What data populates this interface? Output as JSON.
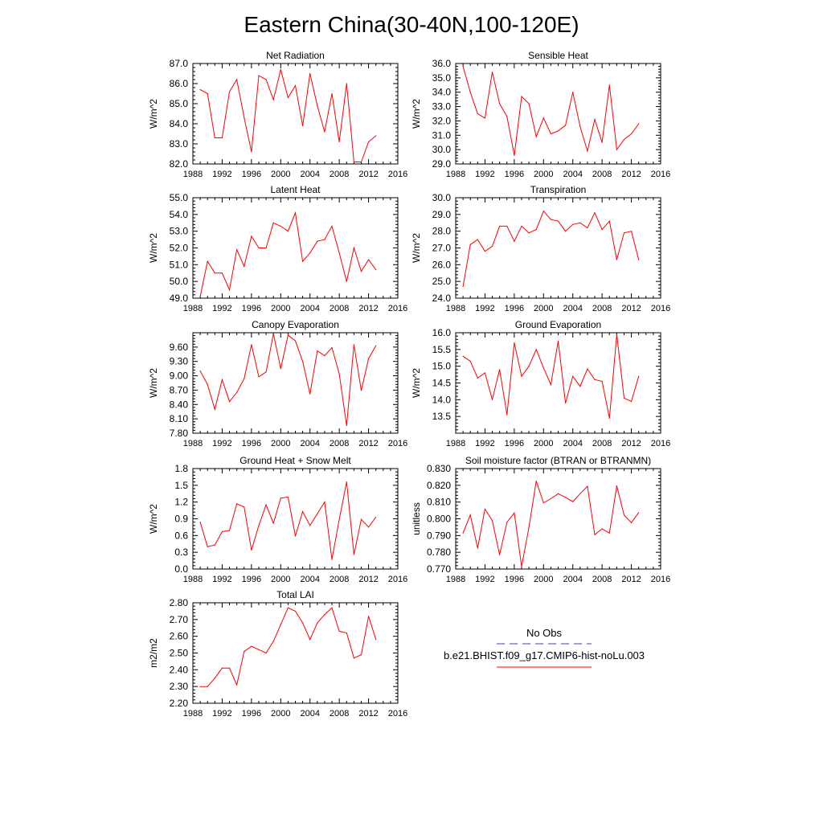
{
  "figure": {
    "title": "Eastern China(30-40N,100-120E)"
  },
  "colors": {
    "model": "#ff0000",
    "obs": "#3f3fa8",
    "axis": "#000000"
  },
  "legend": {
    "obs_label": "No Obs",
    "model_label": "b.e21.BHIST.f09_g17.CMIP6-hist-noLu.003"
  },
  "chart_data": [
    {
      "type": "line",
      "title": "Net Radiation",
      "ylabel": "W/m^2",
      "xlim": [
        1988,
        2016
      ],
      "ylim": [
        82.0,
        87.0
      ],
      "xticks": [
        "1988",
        "1992",
        "1996",
        "2000",
        "2004",
        "2008",
        "2012",
        "2016"
      ],
      "yticks": [
        "82.0",
        "83.0",
        "84.0",
        "85.0",
        "86.0",
        "87.0"
      ],
      "x": [
        1989,
        1990,
        1991,
        1992,
        1993,
        1994,
        1995,
        1996,
        1997,
        1998,
        1999,
        2000,
        2001,
        2002,
        2003,
        2004,
        2005,
        2006,
        2007,
        2008,
        2009,
        2010,
        2011,
        2012,
        2013
      ],
      "series": [
        {
          "name": "b.e21.BHIST.f09_g17.CMIP6-hist-noLu.003",
          "values": [
            85.7,
            85.5,
            83.3,
            83.3,
            85.6,
            86.2,
            84.3,
            82.6,
            86.4,
            86.2,
            85.2,
            86.7,
            85.3,
            85.9,
            83.9,
            86.5,
            84.9,
            83.6,
            85.5,
            83.1,
            86.0,
            82.1,
            82.1,
            83.1,
            83.4
          ]
        }
      ]
    },
    {
      "type": "line",
      "title": "Sensible Heat",
      "ylabel": "W/m^2",
      "xlim": [
        1988,
        2016
      ],
      "ylim": [
        29.0,
        36.0
      ],
      "xticks": [
        "1988",
        "1992",
        "1996",
        "2000",
        "2004",
        "2008",
        "2012",
        "2016"
      ],
      "yticks": [
        "29.0",
        "30.0",
        "31.0",
        "32.0",
        "33.0",
        "34.0",
        "35.0",
        "36.0"
      ],
      "x": [
        1989,
        1990,
        1991,
        1992,
        1993,
        1994,
        1995,
        1996,
        1997,
        1998,
        1999,
        2000,
        2001,
        2002,
        2003,
        2004,
        2005,
        2006,
        2007,
        2008,
        2009,
        2010,
        2011,
        2012,
        2013
      ],
      "series": [
        {
          "name": "b.e21.BHIST.f09_g17.CMIP6-hist-noLu.003",
          "values": [
            35.8,
            34.0,
            32.5,
            32.2,
            35.4,
            33.2,
            32.3,
            29.6,
            33.7,
            33.2,
            30.9,
            32.2,
            31.1,
            31.3,
            31.7,
            34.0,
            31.6,
            29.9,
            32.1,
            30.5,
            34.5,
            30.0,
            30.7,
            31.1,
            31.8
          ]
        }
      ]
    },
    {
      "type": "line",
      "title": "Latent Heat",
      "ylabel": "W/m^2",
      "xlim": [
        1988,
        2016
      ],
      "ylim": [
        49.0,
        55.0
      ],
      "xticks": [
        "1988",
        "1992",
        "1996",
        "2000",
        "2004",
        "2008",
        "2012",
        "2016"
      ],
      "yticks": [
        "49.0",
        "50.0",
        "51.0",
        "52.0",
        "53.0",
        "54.0",
        "55.0"
      ],
      "x": [
        1989,
        1990,
        1991,
        1992,
        1993,
        1994,
        1995,
        1996,
        1997,
        1998,
        1999,
        2000,
        2001,
        2002,
        2003,
        2004,
        2005,
        2006,
        2007,
        2008,
        2009,
        2010,
        2011,
        2012,
        2013
      ],
      "series": [
        {
          "name": "b.e21.BHIST.f09_g17.CMIP6-hist-noLu.003",
          "values": [
            49.1,
            51.2,
            50.5,
            50.5,
            49.5,
            51.9,
            50.9,
            52.7,
            52.0,
            52.0,
            53.5,
            53.3,
            53.0,
            54.1,
            51.2,
            51.7,
            52.4,
            52.5,
            53.3,
            51.7,
            50.0,
            52.0,
            50.6,
            51.3,
            50.7
          ]
        }
      ]
    },
    {
      "type": "line",
      "title": "Transpiration",
      "ylabel": "W/m^2",
      "xlim": [
        1988,
        2016
      ],
      "ylim": [
        24.0,
        30.0
      ],
      "xticks": [
        "1988",
        "1992",
        "1996",
        "2000",
        "2004",
        "2008",
        "2012",
        "2016"
      ],
      "yticks": [
        "24.0",
        "25.0",
        "26.0",
        "27.0",
        "28.0",
        "29.0",
        "30.0"
      ],
      "x": [
        1989,
        1990,
        1991,
        1992,
        1993,
        1994,
        1995,
        1996,
        1997,
        1998,
        1999,
        2000,
        2001,
        2002,
        2003,
        2004,
        2005,
        2006,
        2007,
        2008,
        2009,
        2010,
        2011,
        2012,
        2013
      ],
      "series": [
        {
          "name": "b.e21.BHIST.f09_g17.CMIP6-hist-noLu.003",
          "values": [
            24.7,
            27.2,
            27.5,
            26.8,
            27.1,
            28.3,
            28.3,
            27.4,
            28.3,
            27.9,
            28.1,
            29.2,
            28.7,
            28.6,
            28.0,
            28.4,
            28.5,
            28.2,
            29.1,
            28.1,
            28.6,
            26.3,
            27.9,
            28.0,
            26.3
          ]
        }
      ]
    },
    {
      "type": "line",
      "title": "Canopy Evaporation",
      "ylabel": "W/m^2",
      "xlim": [
        1988,
        2016
      ],
      "ylim": [
        7.8,
        9.9
      ],
      "xticks": [
        "1988",
        "1992",
        "1996",
        "2000",
        "2004",
        "2008",
        "2012",
        "2016"
      ],
      "yticks": [
        "7.80",
        "8.10",
        "8.40",
        "8.70",
        "9.00",
        "9.30",
        "9.60"
      ],
      "x": [
        1989,
        1990,
        1991,
        1992,
        1993,
        1994,
        1995,
        1996,
        1997,
        1998,
        1999,
        2000,
        2001,
        2002,
        2003,
        2004,
        2005,
        2006,
        2007,
        2008,
        2009,
        2010,
        2011,
        2012,
        2013
      ],
      "series": [
        {
          "name": "b.e21.BHIST.f09_g17.CMIP6-hist-noLu.003",
          "values": [
            9.1,
            8.82,
            8.3,
            8.92,
            8.46,
            8.65,
            8.94,
            9.65,
            8.98,
            9.08,
            9.88,
            9.15,
            9.85,
            9.73,
            9.3,
            8.62,
            9.52,
            9.42,
            9.59,
            9.04,
            7.96,
            9.65,
            8.69,
            9.36,
            9.63
          ]
        }
      ]
    },
    {
      "type": "line",
      "title": "Ground Evaporation",
      "ylabel": "W/m^2",
      "xlim": [
        1988,
        2016
      ],
      "ylim": [
        13.0,
        16.0
      ],
      "xticks": [
        "1988",
        "1992",
        "1996",
        "2000",
        "2004",
        "2008",
        "2012",
        "2016"
      ],
      "yticks": [
        "13.5",
        "14.0",
        "14.5",
        "15.0",
        "15.5",
        "16.0"
      ],
      "x": [
        1989,
        1990,
        1991,
        1992,
        1993,
        1994,
        1995,
        1996,
        1997,
        1998,
        1999,
        2000,
        2001,
        2002,
        2003,
        2004,
        2005,
        2006,
        2007,
        2008,
        2009,
        2010,
        2011,
        2012,
        2013
      ],
      "series": [
        {
          "name": "b.e21.BHIST.f09_g17.CMIP6-hist-noLu.003",
          "values": [
            15.3,
            15.15,
            14.65,
            14.8,
            14.0,
            14.9,
            13.55,
            15.7,
            14.7,
            15.0,
            15.5,
            14.95,
            14.45,
            15.75,
            13.9,
            14.7,
            14.4,
            14.92,
            14.6,
            14.55,
            13.45,
            15.95,
            14.05,
            13.95,
            14.7
          ]
        }
      ]
    },
    {
      "type": "line",
      "title": "Ground Heat + Snow Melt",
      "ylabel": "W/m^2",
      "xlim": [
        1988,
        2016
      ],
      "ylim": [
        0.0,
        1.8
      ],
      "xticks": [
        "1988",
        "1992",
        "1996",
        "2000",
        "2004",
        "2008",
        "2012",
        "2016"
      ],
      "yticks": [
        "0.0",
        "0.3",
        "0.6",
        "0.9",
        "1.2",
        "1.5",
        "1.8"
      ],
      "x": [
        1989,
        1990,
        1991,
        1992,
        1993,
        1994,
        1995,
        1996,
        1997,
        1998,
        1999,
        2000,
        2001,
        2002,
        2003,
        2004,
        2005,
        2006,
        2007,
        2008,
        2009,
        2010,
        2011,
        2012,
        2013
      ],
      "series": [
        {
          "name": "b.e21.BHIST.f09_g17.CMIP6-hist-noLu.003",
          "values": [
            0.84,
            0.4,
            0.43,
            0.67,
            0.69,
            1.17,
            1.11,
            0.34,
            0.78,
            1.15,
            0.82,
            1.27,
            1.29,
            0.59,
            1.03,
            0.78,
            0.99,
            1.2,
            0.17,
            0.89,
            1.56,
            0.26,
            0.89,
            0.75,
            0.93
          ]
        }
      ]
    },
    {
      "type": "line",
      "title": "Soil moisture factor (BTRAN or BTRANMN)",
      "ylabel": "unitless",
      "xlim": [
        1988,
        2016
      ],
      "ylim": [
        0.77,
        0.83
      ],
      "xticks": [
        "1988",
        "1992",
        "1996",
        "2000",
        "2004",
        "2008",
        "2012",
        "2016"
      ],
      "yticks": [
        "0.770",
        "0.780",
        "0.790",
        "0.800",
        "0.810",
        "0.820",
        "0.830"
      ],
      "x": [
        1989,
        1990,
        1991,
        1992,
        1993,
        1994,
        1995,
        1996,
        1997,
        1998,
        1999,
        2000,
        2001,
        2002,
        2003,
        2004,
        2005,
        2006,
        2007,
        2008,
        2009,
        2010,
        2011,
        2012,
        2013
      ],
      "series": [
        {
          "name": "b.e21.BHIST.f09_g17.CMIP6-hist-noLu.003",
          "values": [
            0.7915,
            0.8023,
            0.7825,
            0.8058,
            0.799,
            0.7785,
            0.798,
            0.8035,
            0.7715,
            0.7948,
            0.8225,
            0.8095,
            0.812,
            0.815,
            0.8128,
            0.8102,
            0.815,
            0.8194,
            0.7905,
            0.794,
            0.7915,
            0.8197,
            0.8022,
            0.7977,
            0.8037
          ]
        }
      ]
    },
    {
      "type": "line",
      "title": "Total LAI",
      "ylabel": "m2/m2",
      "xlim": [
        1988,
        2016
      ],
      "ylim": [
        2.2,
        2.8
      ],
      "xticks": [
        "1988",
        "1992",
        "1996",
        "2000",
        "2004",
        "2008",
        "2012",
        "2016"
      ],
      "yticks": [
        "2.20",
        "2.30",
        "2.40",
        "2.50",
        "2.60",
        "2.70",
        "2.80"
      ],
      "x": [
        1989,
        1990,
        1991,
        1992,
        1993,
        1994,
        1995,
        1996,
        1997,
        1998,
        1999,
        2000,
        2001,
        2002,
        2003,
        2004,
        2005,
        2006,
        2007,
        2008,
        2009,
        2010,
        2011,
        2012,
        2013
      ],
      "series": [
        {
          "name": "b.e21.BHIST.f09_g17.CMIP6-hist-noLu.003",
          "values": [
            2.3,
            2.3,
            2.35,
            2.41,
            2.41,
            2.31,
            2.51,
            2.54,
            2.52,
            2.5,
            2.57,
            2.67,
            2.77,
            2.75,
            2.68,
            2.58,
            2.68,
            2.73,
            2.77,
            2.63,
            2.62,
            2.47,
            2.49,
            2.72,
            2.58
          ]
        }
      ]
    }
  ]
}
